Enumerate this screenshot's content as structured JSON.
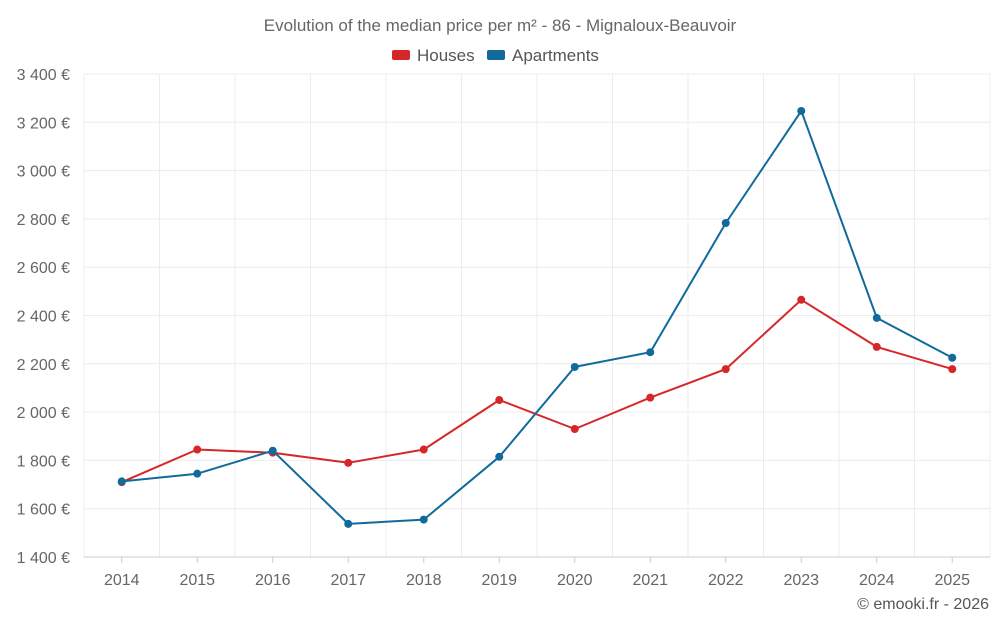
{
  "chart_data": {
    "type": "line",
    "title": "Evolution of the median price per m² - 86 - Mignaloux-Beauvoir",
    "categories": [
      "2014",
      "2015",
      "2016",
      "2017",
      "2018",
      "2019",
      "2020",
      "2021",
      "2022",
      "2023",
      "2024",
      "2025"
    ],
    "series": [
      {
        "name": "Houses",
        "color": "#d62728",
        "values": [
          1710,
          1845,
          1832,
          1790,
          1845,
          2050,
          1930,
          2060,
          2178,
          2465,
          2270,
          2178
        ]
      },
      {
        "name": "Apartments",
        "color": "#106a9c",
        "values": [
          1713,
          1745,
          1840,
          1537,
          1555,
          1815,
          2187,
          2248,
          2783,
          3247,
          2390,
          2225
        ]
      }
    ],
    "ylim": [
      1400,
      3400
    ],
    "yticks": [
      1400,
      1600,
      1800,
      2000,
      2200,
      2400,
      2600,
      2800,
      3000,
      3200,
      3400
    ],
    "ytick_labels": [
      "1 400 €",
      "1 600 €",
      "1 800 €",
      "2 000 €",
      "2 200 €",
      "2 400 €",
      "2 600 €",
      "2 800 €",
      "3 000 €",
      "3 200 €",
      "3 400 €"
    ],
    "xlabel": "",
    "ylabel": "",
    "grid": true,
    "legend_position": "top-center"
  },
  "credit": "© emooki.fr - 2026"
}
